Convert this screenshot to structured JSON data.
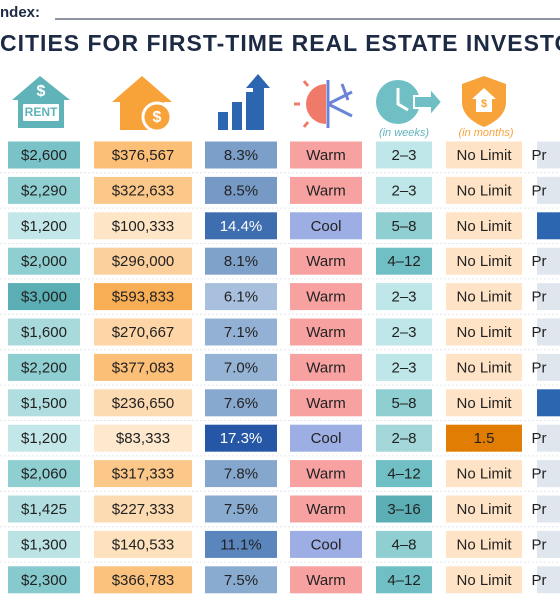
{
  "header": {
    "kicker": "ndex:",
    "title": "CITIES FOR FIRST-TIME REAL ESTATE INVESTO"
  },
  "icons": {
    "rent_symbol": "$",
    "rent_label": "RENT",
    "price_symbol": "$",
    "shield_symbol": "$"
  },
  "column_notes": {
    "weeks": "(in weeks)",
    "months": "(in months)"
  },
  "table": {
    "rows": [
      [
        "$2,600",
        "$376,567",
        "8.3%",
        "Warm",
        "2–3",
        "No Limit",
        "Pr"
      ],
      [
        "$2,290",
        "$322,633",
        "8.5%",
        "Warm",
        "2–3",
        "No Limit",
        "Pr"
      ],
      [
        "$1,200",
        "$100,333",
        "14.4%",
        "Cool",
        "5–8",
        "No Limit",
        null
      ],
      [
        "$2,000",
        "$296,000",
        "8.1%",
        "Warm",
        "4–12",
        "No Limit",
        "Pr"
      ],
      [
        "$3,000",
        "$593,833",
        "6.1%",
        "Warm",
        "2–3",
        "No Limit",
        "Pr"
      ],
      [
        "$1,600",
        "$270,667",
        "7.1%",
        "Warm",
        "2–3",
        "No Limit",
        "Pr"
      ],
      [
        "$2,200",
        "$377,083",
        "7.0%",
        "Warm",
        "2–3",
        "No Limit",
        "Pr"
      ],
      [
        "$1,500",
        "$236,650",
        "7.6%",
        "Warm",
        "5–8",
        "No Limit",
        null
      ],
      [
        "$1,200",
        "$83,333",
        "17.3%",
        "Cool",
        "2–8",
        "1.5",
        "Pr"
      ],
      [
        "$2,060",
        "$317,333",
        "7.8%",
        "Warm",
        "4–12",
        "No Limit",
        "Pr"
      ],
      [
        "$1,425",
        "$227,333",
        "7.5%",
        "Warm",
        "3–16",
        "No Limit",
        "Pr"
      ],
      [
        "$1,300",
        "$140,533",
        "11.1%",
        "Cool",
        "4–8",
        "No Limit",
        "Pr"
      ],
      [
        "$2,300",
        "$366,783",
        "7.5%",
        "Warm",
        "4–12",
        "No Limit",
        "Pr"
      ]
    ],
    "cell_colors": [
      [
        "#79c3c8",
        "#fbbf78",
        "#7b9fc9",
        "#f7a1a1",
        "#bfe6e8",
        "#fee3c6",
        "#dfe6ee"
      ],
      [
        "#8fcfd2",
        "#fcc88a",
        "#7699c6",
        "#f7a1a1",
        "#bfe6e8",
        "#fee3c6",
        "#dfe6ee"
      ],
      [
        "#c3e7e8",
        "#fee5c6",
        "#3e6db0",
        "#9caee3",
        "#8fcfd2",
        "#fee3c6",
        "#2c66b0"
      ],
      [
        "#8fcfd2",
        "#fcd09c",
        "#7fa2cb",
        "#f7a1a1",
        "#6fbfc4",
        "#fee3c6",
        "#dfe6ee"
      ],
      [
        "#5aaeb4",
        "#f8ae55",
        "#a8c0dd",
        "#f7a1a1",
        "#bfe6e8",
        "#fee3c6",
        "#dfe6ee"
      ],
      [
        "#a8dadc",
        "#fdd5a6",
        "#93b1d4",
        "#f7a1a1",
        "#bfe6e8",
        "#fee3c6",
        "#dfe6ee"
      ],
      [
        "#8fcfd2",
        "#fbbf78",
        "#95b3d5",
        "#f7a1a1",
        "#bfe6e8",
        "#fee3c6",
        "#dfe6ee"
      ],
      [
        "#b0dee0",
        "#fddbb2",
        "#88a9cf",
        "#f7a1a1",
        "#8fcfd2",
        "#fee3c6",
        "#2c66b0"
      ],
      [
        "#c3e7e8",
        "#fee9cf",
        "#2557a6",
        "#9caee3",
        "#a3d7da",
        "#e27d04",
        "#dfe6ee"
      ],
      [
        "#8fcfd2",
        "#fcc88a",
        "#85a7ce",
        "#f7a1a1",
        "#6fbfc4",
        "#fee3c6",
        "#dfe6ee"
      ],
      [
        "#b0dee0",
        "#fddbb2",
        "#8aabd0",
        "#f7a1a1",
        "#5aaeb4",
        "#fee3c6",
        "#dfe6ee"
      ],
      [
        "#bce3e4",
        "#fee1bd",
        "#5b85bd",
        "#9caee3",
        "#8fcfd2",
        "#fee3c6",
        "#dfe6ee"
      ],
      [
        "#86cace",
        "#fbc27e",
        "#8aabd0",
        "#f7a1a1",
        "#6fbfc4",
        "#fee3c6",
        "#dfe6ee"
      ]
    ]
  }
}
